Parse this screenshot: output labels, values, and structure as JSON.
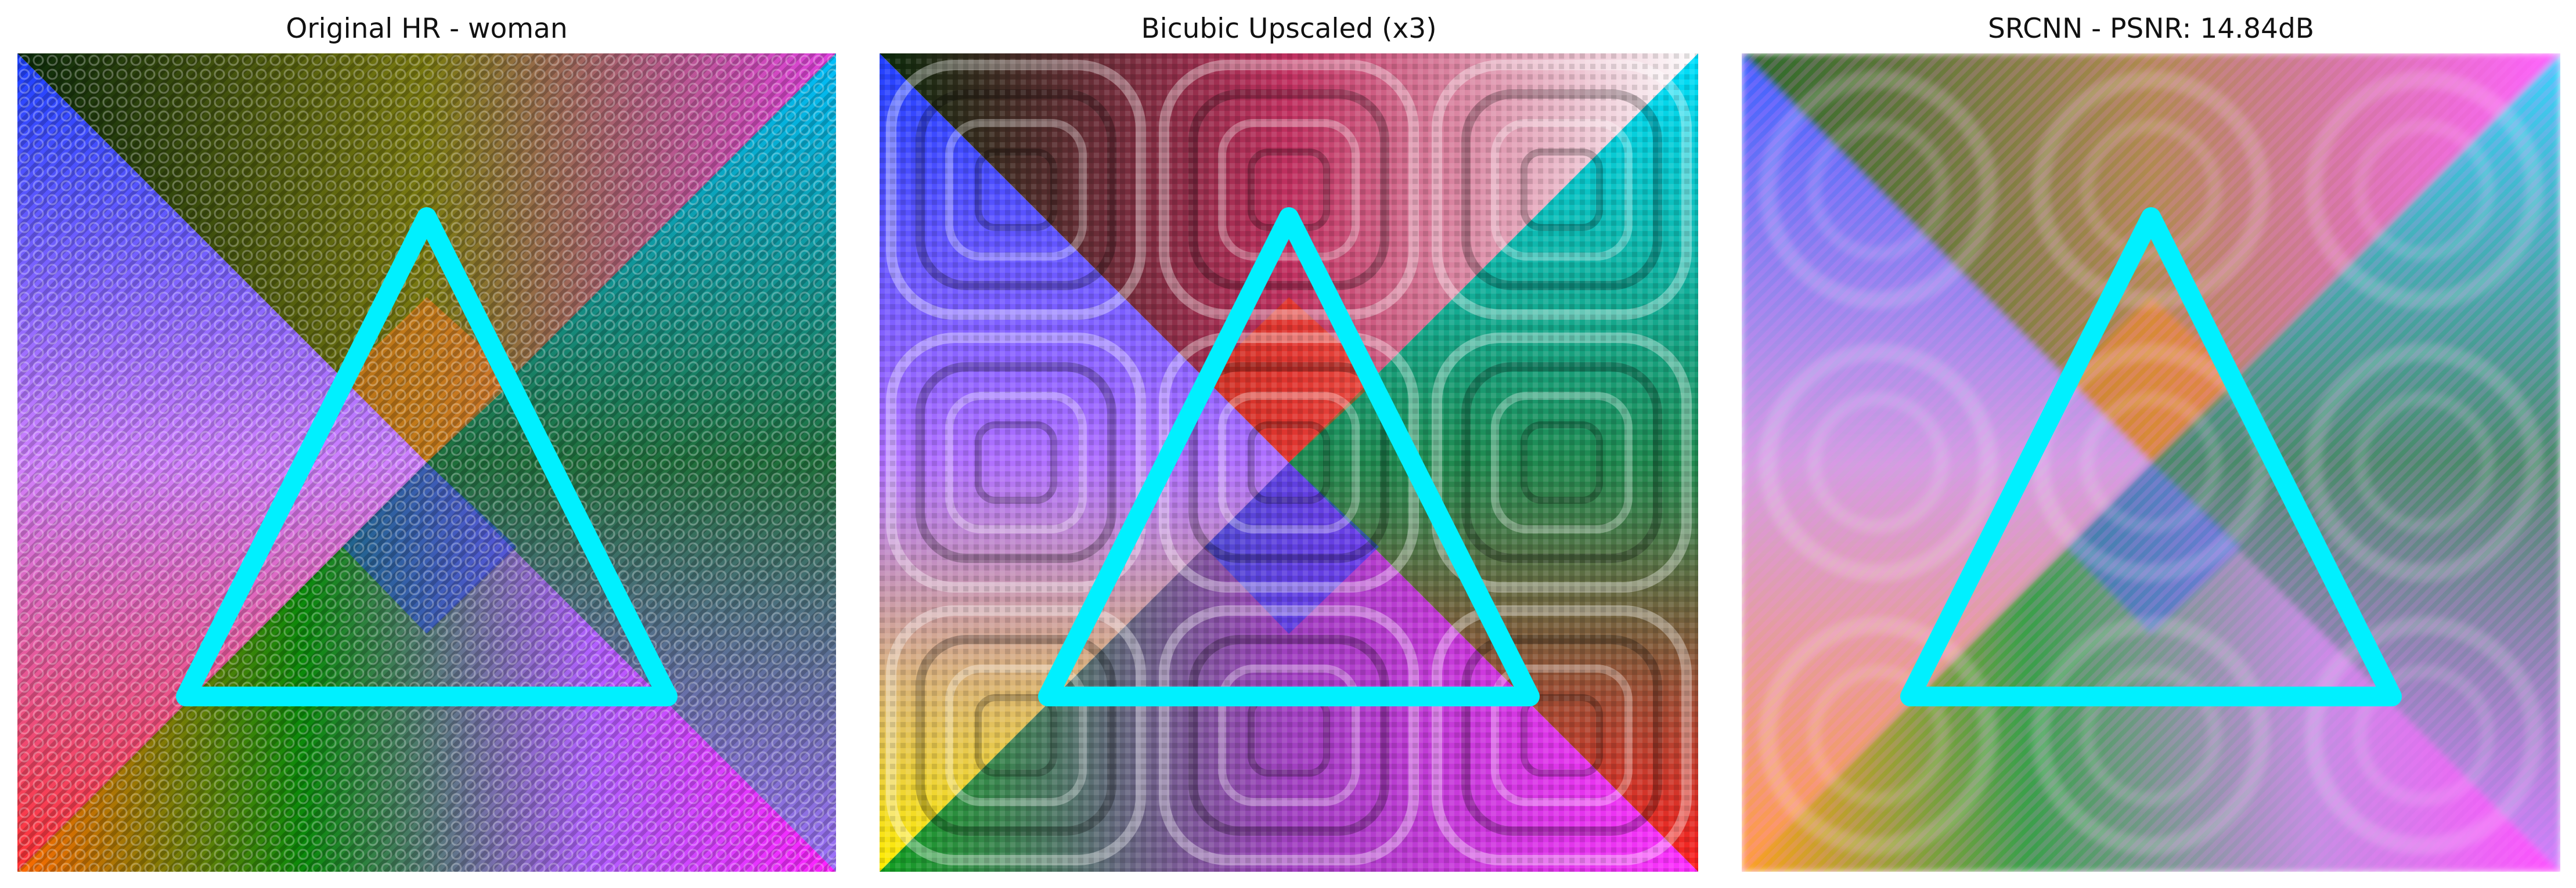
{
  "figure": {
    "panels": [
      {
        "id": "original",
        "title": "Original HR - woman",
        "style": "sharp"
      },
      {
        "id": "bicubic",
        "title": "Bicubic Upscaled (x3)",
        "style": "blocky"
      },
      {
        "id": "srcnn",
        "title": "SRCNN - PSNR: 14.84dB",
        "style": "blurred"
      }
    ],
    "colors": {
      "triangle": "#00f0ff",
      "top": "#0a5a0a",
      "right": "#1f8f5a",
      "bottom": "#0d6b25",
      "left": "#6b4fff",
      "magenta": "#e040e0",
      "orange": "#ff7a20",
      "blue": "#1f3fff",
      "yellow": "#ffee00",
      "red": "#ff1e1e"
    }
  }
}
